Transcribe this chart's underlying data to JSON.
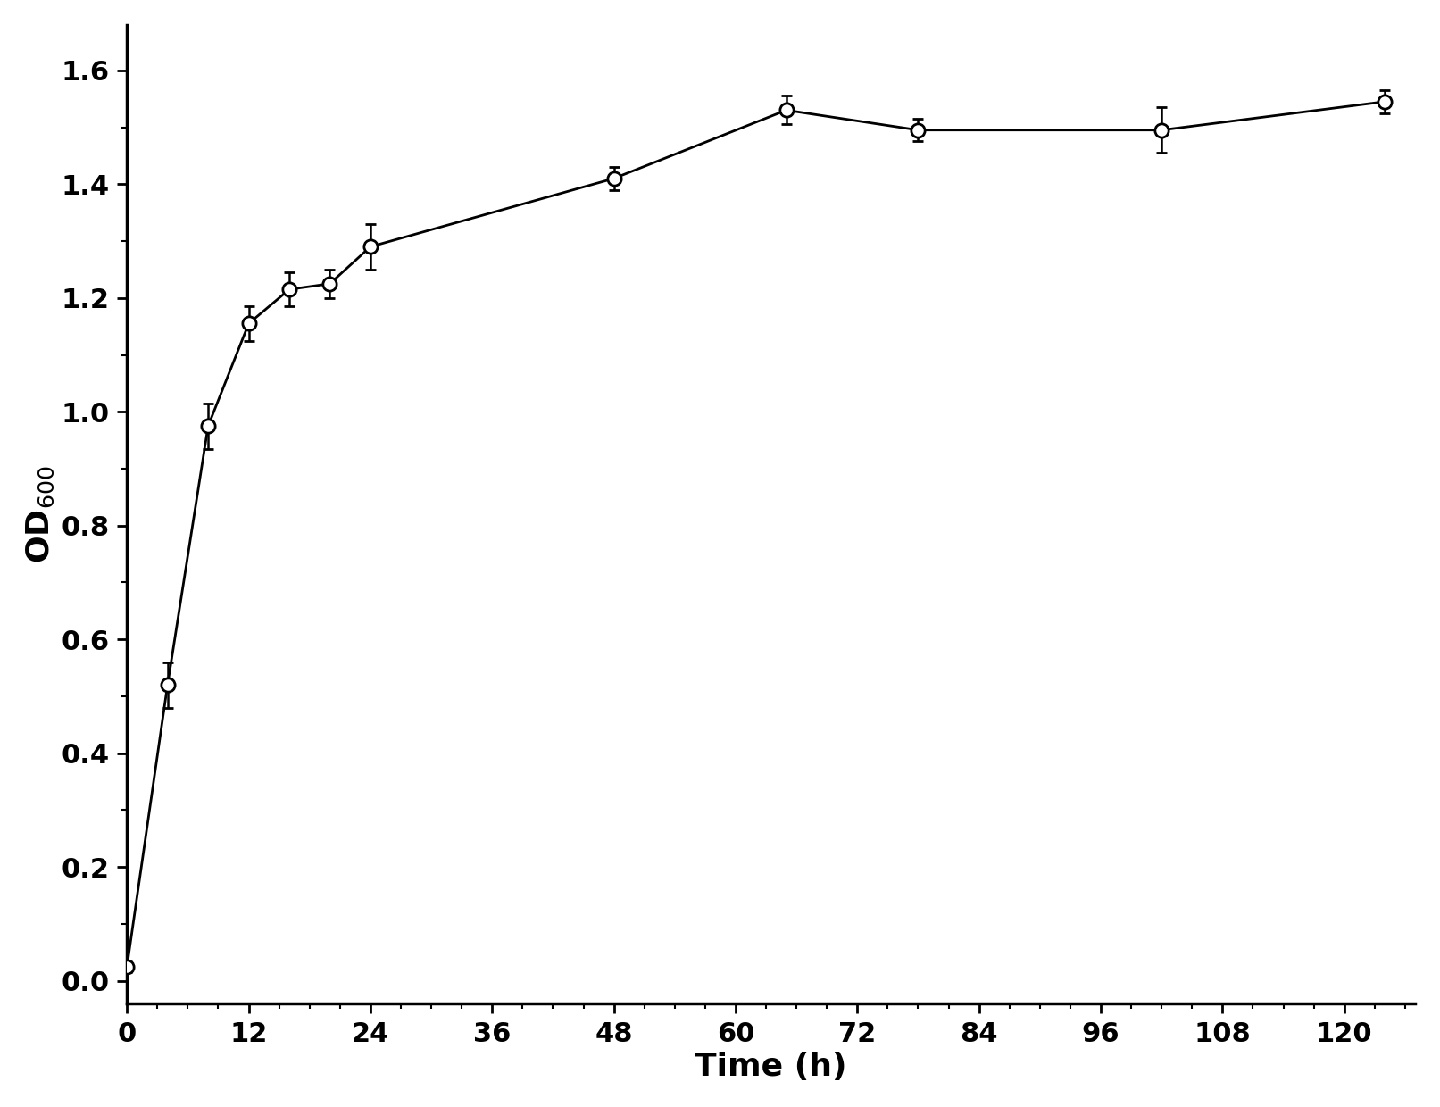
{
  "x": [
    0,
    4,
    8,
    12,
    16,
    20,
    24,
    48,
    65,
    78,
    102,
    124
  ],
  "y": [
    0.025,
    0.52,
    0.975,
    1.155,
    1.215,
    1.225,
    1.29,
    1.41,
    1.53,
    1.495,
    1.495,
    1.545
  ],
  "yerr": [
    0.01,
    0.04,
    0.04,
    0.03,
    0.03,
    0.025,
    0.04,
    0.02,
    0.025,
    0.02,
    0.04,
    0.02
  ],
  "xlabel": "Time (h)",
  "ylabel": "OD$_{600}$",
  "xlim": [
    0,
    127
  ],
  "ylim": [
    -0.04,
    1.68
  ],
  "xticks": [
    0,
    12,
    24,
    36,
    48,
    60,
    72,
    84,
    96,
    108,
    120
  ],
  "yticks": [
    0.0,
    0.2,
    0.4,
    0.6,
    0.8,
    1.0,
    1.2,
    1.4,
    1.6
  ],
  "line_color": "#000000",
  "marker_facecolor": "#ffffff",
  "marker_edgecolor": "#000000",
  "marker_size": 11,
  "line_width": 2.0,
  "capsize": 4,
  "elinewidth": 1.8,
  "xlabel_fontsize": 26,
  "ylabel_fontsize": 26,
  "tick_fontsize": 22,
  "background_color": "#ffffff"
}
